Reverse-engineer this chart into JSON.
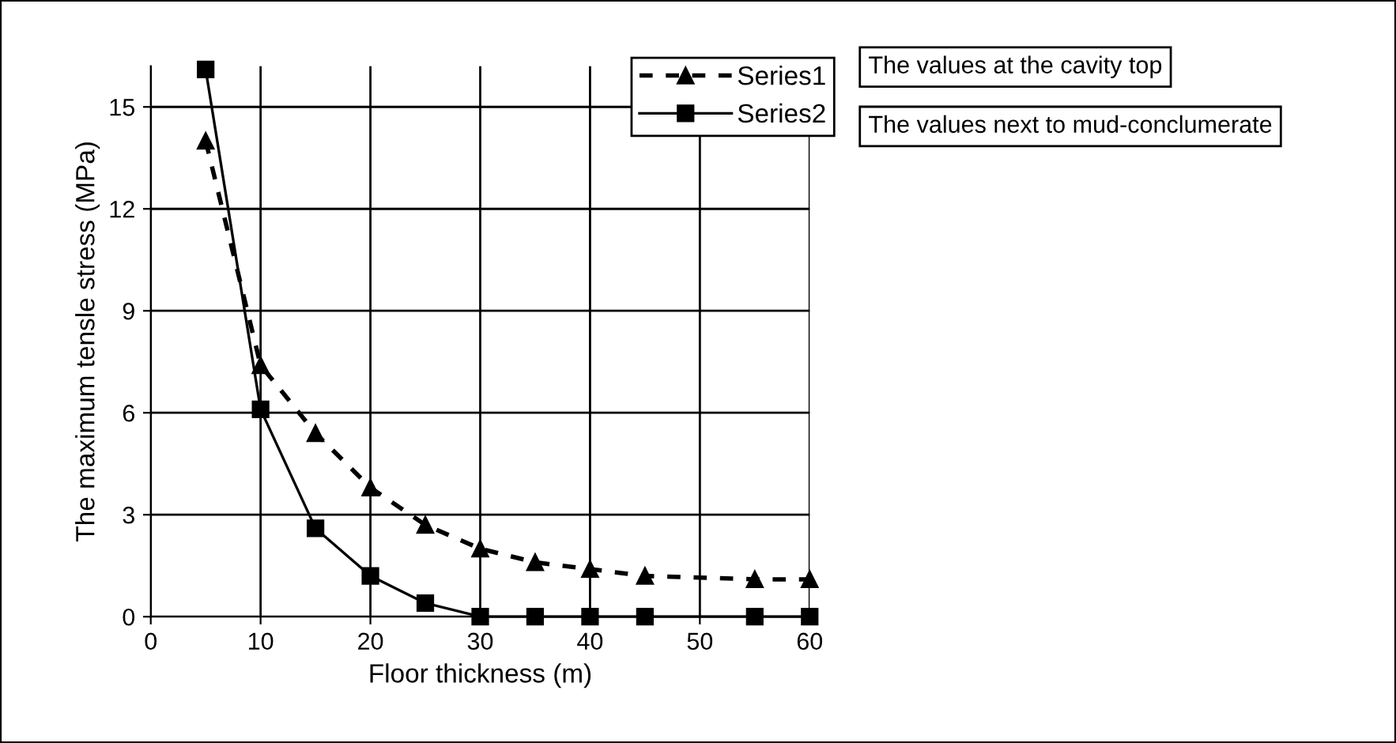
{
  "chart_data": {
    "type": "line",
    "xlabel": "Floor thickness (m)",
    "ylabel": "The maximum tensle stress (MPa)",
    "x": [
      5,
      10,
      15,
      20,
      25,
      30,
      35,
      40,
      45,
      55,
      60
    ],
    "series": [
      {
        "name": "Series1",
        "color": "#000000",
        "marker": "triangle",
        "line_style": "dashed",
        "values": [
          14.0,
          7.4,
          5.4,
          3.8,
          2.7,
          2.0,
          1.6,
          1.4,
          1.2,
          1.1,
          1.1
        ]
      },
      {
        "name": "Series2",
        "color": "#000000",
        "marker": "square",
        "line_style": "solid",
        "values": [
          16.1,
          6.1,
          2.6,
          1.2,
          0.4,
          0,
          0,
          0,
          0,
          0,
          0
        ]
      }
    ],
    "xlim": [
      0,
      60
    ],
    "ylim": [
      0,
      16.2
    ],
    "xticks": [
      0,
      10,
      20,
      30,
      40,
      50,
      60
    ],
    "yticks": [
      0,
      3,
      6,
      9,
      12,
      15
    ],
    "grid": true,
    "legend": "top right",
    "annotations": [
      "The values at the cavity top",
      "The values next to mud-conclumerate"
    ]
  }
}
